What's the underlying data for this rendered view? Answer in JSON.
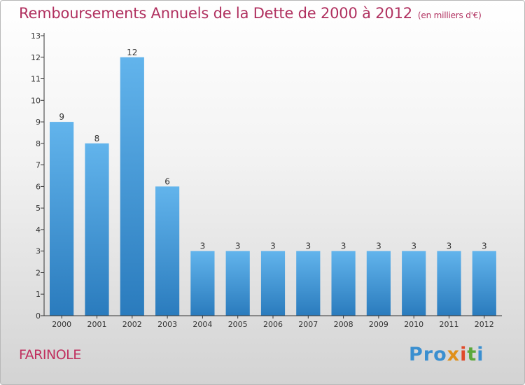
{
  "header": {
    "title": "Remboursements Annuels de la Dette de 2000 à 2012",
    "subtitle": "(en milliers d'€)"
  },
  "footer": {
    "commune": "FARINOLE",
    "brand": {
      "p1": "Pro",
      "p2": "x",
      "p3": "i",
      "p4": "t",
      "p5": "i"
    }
  },
  "colors": {
    "bar": "#3a8fd3",
    "bar_light": "#5fb1ea",
    "title": "#b0305f",
    "axis": "#333333"
  },
  "chart_data": {
    "type": "bar",
    "title": "Remboursements Annuels de la Dette de 2000 à 2012",
    "subtitle": "(en milliers d'€)",
    "categories": [
      "2000",
      "2001",
      "2002",
      "2003",
      "2004",
      "2005",
      "2006",
      "2007",
      "2008",
      "2009",
      "2010",
      "2011",
      "2012"
    ],
    "values": [
      9,
      8,
      12,
      6,
      3,
      3,
      3,
      3,
      3,
      3,
      3,
      3,
      3
    ],
    "data_labels": [
      "9",
      "8",
      "12",
      "6",
      "3",
      "3",
      "3",
      "3",
      "3",
      "3",
      "3",
      "3",
      "3"
    ],
    "yticks": [
      0,
      1,
      2,
      3,
      4,
      5,
      6,
      7,
      8,
      9,
      10,
      11,
      12,
      13
    ],
    "ylim": [
      0,
      13
    ],
    "xlabel": "",
    "ylabel": "",
    "grid": false,
    "legend": "none"
  }
}
